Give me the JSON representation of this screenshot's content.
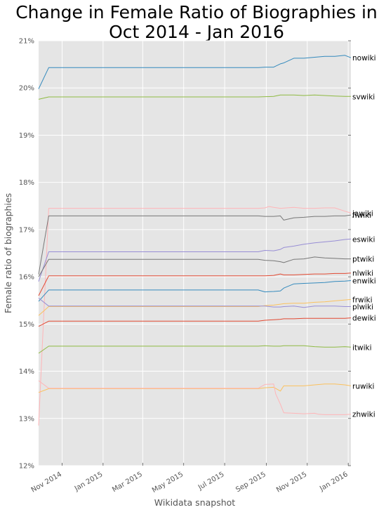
{
  "chart_data": {
    "type": "line",
    "title_lines": [
      "Change in Female Ratio of Biographies in",
      "Oct 2014 - Jan 2016"
    ],
    "xlabel": "Wikidata snapshot",
    "ylabel": "Female ratio of biographies",
    "ylim": [
      12,
      21
    ],
    "yticks": [
      12,
      13,
      14,
      15,
      16,
      17,
      18,
      19,
      20,
      21
    ],
    "ytick_labels": [
      "12%",
      "13%",
      "14%",
      "15%",
      "16%",
      "17%",
      "18%",
      "19%",
      "20%",
      "21%"
    ],
    "xlim": [
      "2014-09-27",
      "2016-01-05"
    ],
    "xticks": [
      "2014-11-01",
      "2015-01-01",
      "2015-03-01",
      "2015-05-01",
      "2015-07-01",
      "2015-09-01",
      "2015-11-01",
      "2016-01-01"
    ],
    "xtick_labels": [
      "Nov 2014",
      "Jan 2015",
      "Mar 2015",
      "May 2015",
      "Jul 2015",
      "Sep 2015",
      "Nov 2015",
      "Jan 2016"
    ],
    "grid": true,
    "background": "#e5e5e5",
    "series": [
      {
        "name": "nowiki",
        "color": "#348abd",
        "dates": [
          "2014-09-27",
          "2014-10-12",
          "2015-08-20",
          "2015-08-30",
          "2015-09-12",
          "2015-09-22",
          "2015-09-27",
          "2015-10-12",
          "2015-10-27",
          "2015-11-12",
          "2015-11-27",
          "2015-12-12",
          "2015-12-27",
          "2016-01-05"
        ],
        "values": [
          19.98,
          20.43,
          20.43,
          20.44,
          20.44,
          20.51,
          20.53,
          20.63,
          20.63,
          20.65,
          20.67,
          20.67,
          20.69,
          20.64
        ]
      },
      {
        "name": "svwiki",
        "color": "#8eba42",
        "dates": [
          "2014-09-27",
          "2014-10-12",
          "2015-08-20",
          "2015-09-12",
          "2015-09-22",
          "2015-10-12",
          "2015-10-27",
          "2015-11-12",
          "2015-11-27",
          "2015-12-12",
          "2015-12-27",
          "2016-01-05"
        ],
        "values": [
          19.76,
          19.81,
          19.81,
          19.82,
          19.85,
          19.85,
          19.84,
          19.85,
          19.84,
          19.83,
          19.82,
          19.82
        ]
      },
      {
        "name": "jawiki",
        "color": "#ffb5b8",
        "dates": [
          "2014-09-27",
          "2014-10-12",
          "2015-08-20",
          "2015-08-30",
          "2015-09-05",
          "2015-09-12",
          "2015-09-22",
          "2015-10-12",
          "2015-10-27",
          "2015-11-12",
          "2015-11-27",
          "2015-12-12",
          "2015-12-27",
          "2016-01-05"
        ],
        "values": [
          12.85,
          17.45,
          17.45,
          17.46,
          17.49,
          17.47,
          17.45,
          17.47,
          17.45,
          17.45,
          17.46,
          17.46,
          17.39,
          17.35
        ]
      },
      {
        "name": "fiwiki",
        "color": "#777777",
        "dates": [
          "2014-09-27",
          "2014-10-12",
          "2015-08-20",
          "2015-08-30",
          "2015-09-12",
          "2015-09-22",
          "2015-09-27",
          "2015-10-12",
          "2015-10-27",
          "2015-11-12",
          "2015-11-27",
          "2015-12-12",
          "2015-12-27",
          "2016-01-05"
        ],
        "values": [
          16.05,
          17.29,
          17.29,
          17.28,
          17.28,
          17.29,
          17.2,
          17.25,
          17.26,
          17.28,
          17.28,
          17.29,
          17.29,
          17.31
        ]
      },
      {
        "name": "eswiki",
        "color": "#988ed5",
        "dates": [
          "2014-09-27",
          "2014-10-12",
          "2015-08-20",
          "2015-08-30",
          "2015-09-12",
          "2015-09-22",
          "2015-09-27",
          "2015-10-12",
          "2015-10-27",
          "2015-11-12",
          "2015-11-27",
          "2015-12-12",
          "2015-12-27",
          "2016-01-05"
        ],
        "values": [
          15.9,
          16.53,
          16.53,
          16.56,
          16.55,
          16.58,
          16.62,
          16.65,
          16.69,
          16.72,
          16.74,
          16.76,
          16.79,
          16.8
        ]
      },
      {
        "name": "ptwiki",
        "color": "#777777",
        "dates": [
          "2014-09-27",
          "2014-10-12",
          "2015-08-20",
          "2015-08-30",
          "2015-09-12",
          "2015-09-22",
          "2015-09-27",
          "2015-10-12",
          "2015-10-27",
          "2015-11-12",
          "2015-11-27",
          "2015-12-12",
          "2015-12-27",
          "2016-01-05"
        ],
        "values": [
          16.0,
          16.37,
          16.37,
          16.35,
          16.34,
          16.32,
          16.3,
          16.37,
          16.38,
          16.42,
          16.4,
          16.39,
          16.38,
          16.38
        ]
      },
      {
        "name": "nlwiki",
        "color": "#e24a33",
        "dates": [
          "2014-09-27",
          "2014-10-12",
          "2015-08-20",
          "2015-08-30",
          "2015-09-12",
          "2015-09-22",
          "2015-09-27",
          "2015-10-12",
          "2015-10-27",
          "2015-11-12",
          "2015-11-27",
          "2015-12-12",
          "2015-12-27",
          "2016-01-05"
        ],
        "values": [
          15.6,
          16.02,
          16.02,
          16.02,
          16.03,
          16.06,
          16.04,
          16.04,
          16.05,
          16.06,
          16.06,
          16.07,
          16.07,
          16.08
        ]
      },
      {
        "name": "enwiki",
        "color": "#348abd",
        "dates": [
          "2014-09-27",
          "2014-10-12",
          "2015-08-20",
          "2015-08-30",
          "2015-09-12",
          "2015-09-22",
          "2015-09-27",
          "2015-10-12",
          "2015-10-27",
          "2015-11-12",
          "2015-11-27",
          "2015-12-12",
          "2015-12-27",
          "2016-01-05"
        ],
        "values": [
          15.48,
          15.72,
          15.72,
          15.68,
          15.69,
          15.7,
          15.76,
          15.85,
          15.86,
          15.87,
          15.88,
          15.9,
          15.91,
          15.92
        ]
      },
      {
        "name": "frwiki",
        "color": "#fbc15e",
        "dates": [
          "2014-09-27",
          "2014-10-12",
          "2015-08-20",
          "2015-08-30",
          "2015-09-12",
          "2015-09-22",
          "2015-09-27",
          "2015-10-12",
          "2015-10-27",
          "2015-11-12",
          "2015-11-27",
          "2015-12-12",
          "2015-12-27",
          "2016-01-05"
        ],
        "values": [
          15.18,
          15.37,
          15.37,
          15.39,
          15.4,
          15.42,
          15.43,
          15.44,
          15.44,
          15.46,
          15.47,
          15.49,
          15.51,
          15.52
        ]
      },
      {
        "name": "plwiki",
        "color": "#988ed5",
        "dates": [
          "2014-09-27",
          "2014-10-12",
          "2015-08-20",
          "2015-08-30",
          "2015-09-12",
          "2015-09-22",
          "2015-09-27",
          "2015-10-12",
          "2015-10-27",
          "2015-11-12",
          "2015-11-27",
          "2015-12-12",
          "2015-12-27",
          "2016-01-05"
        ],
        "values": [
          15.55,
          15.38,
          15.38,
          15.38,
          15.36,
          15.36,
          15.37,
          15.38,
          15.35,
          15.38,
          15.38,
          15.38,
          15.37,
          15.37
        ]
      },
      {
        "name": "dewiki",
        "color": "#e24a33",
        "dates": [
          "2014-09-27",
          "2014-10-12",
          "2015-08-20",
          "2015-08-30",
          "2015-09-12",
          "2015-09-22",
          "2015-09-27",
          "2015-10-12",
          "2015-10-27",
          "2015-11-12",
          "2015-11-27",
          "2015-12-12",
          "2015-12-27",
          "2016-01-05"
        ],
        "values": [
          14.95,
          15.06,
          15.06,
          15.08,
          15.09,
          15.1,
          15.11,
          15.11,
          15.12,
          15.12,
          15.12,
          15.12,
          15.12,
          15.13
        ]
      },
      {
        "name": "itwiki",
        "color": "#8eba42",
        "dates": [
          "2014-09-27",
          "2014-10-12",
          "2015-08-20",
          "2015-08-30",
          "2015-09-12",
          "2015-09-22",
          "2015-09-27",
          "2015-10-12",
          "2015-10-27",
          "2015-11-12",
          "2015-11-27",
          "2015-12-12",
          "2015-12-27",
          "2016-01-05"
        ],
        "values": [
          14.38,
          14.53,
          14.53,
          14.54,
          14.53,
          14.53,
          14.54,
          14.54,
          14.54,
          14.52,
          14.51,
          14.51,
          14.52,
          14.51
        ]
      },
      {
        "name": "ruwiki",
        "color": "#fbc15e",
        "dates": [
          "2014-09-27",
          "2014-10-12",
          "2015-08-20",
          "2015-08-30",
          "2015-09-12",
          "2015-09-22",
          "2015-09-27",
          "2015-10-12",
          "2015-10-27",
          "2015-11-12",
          "2015-11-27",
          "2015-12-12",
          "2015-12-27",
          "2016-01-05"
        ],
        "values": [
          13.55,
          13.63,
          13.63,
          13.65,
          13.66,
          13.58,
          13.69,
          13.69,
          13.69,
          13.71,
          13.73,
          13.73,
          13.71,
          13.69
        ]
      },
      {
        "name": "zhwiki",
        "color": "#ffb5b8",
        "dates": [
          "2014-09-27",
          "2014-10-12",
          "2015-08-20",
          "2015-08-30",
          "2015-09-12",
          "2015-09-15",
          "2015-09-22",
          "2015-09-27",
          "2015-10-12",
          "2015-10-27",
          "2015-11-12",
          "2015-11-17",
          "2015-11-27",
          "2015-12-12",
          "2015-12-27",
          "2016-01-05"
        ],
        "values": [
          13.8,
          13.64,
          13.64,
          13.72,
          13.73,
          13.52,
          13.3,
          13.12,
          13.11,
          13.1,
          13.11,
          13.09,
          13.08,
          13.08,
          13.08,
          13.09
        ]
      }
    ]
  }
}
